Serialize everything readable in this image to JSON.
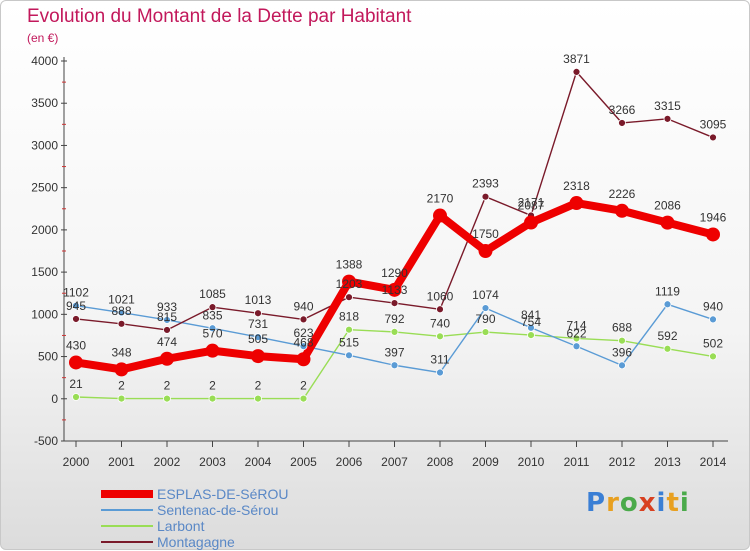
{
  "title": "Evolution du Montant de la Dette par Habitant",
  "subtitle": "(en €)",
  "logo": "Proxiti",
  "chart_data": {
    "type": "line",
    "categories": [
      "2000",
      "2001",
      "2002",
      "2003",
      "2004",
      "2005",
      "2006",
      "2007",
      "2008",
      "2009",
      "2010",
      "2011",
      "2012",
      "2013",
      "2014"
    ],
    "y_ticks": [
      "-500",
      "0",
      "500",
      "1000",
      "1500",
      "2000",
      "2500",
      "3000",
      "3500",
      "4000"
    ],
    "ylim": [
      -500,
      4000
    ],
    "grid": false,
    "legend_position": "bottom-left",
    "series": [
      {
        "name": "ESPLAS-DE-SéROU",
        "color": "#ee0000",
        "values": [
          430,
          348,
          474,
          570,
          505,
          468,
          1388,
          1290,
          2170,
          1750,
          2087,
          2318,
          2226,
          2086,
          1946
        ],
        "labels": [
          "430",
          "348",
          "474",
          "570",
          "505",
          "468",
          "1388",
          "1290",
          "2170",
          "1750",
          "2087",
          "2318",
          "2226",
          "2086",
          "1946"
        ]
      },
      {
        "name": "Sentenac-de-Sérou",
        "color": "#5a9bd5",
        "values": [
          1102,
          1021,
          933,
          835,
          731,
          623,
          515,
          397,
          311,
          1074,
          841,
          622,
          396,
          1119,
          940
        ],
        "labels": [
          "1102",
          "1021",
          "933",
          "835",
          "731",
          "623",
          "515",
          "397",
          "311",
          "1074",
          "841",
          "622",
          "396",
          "1119",
          "940"
        ]
      },
      {
        "name": "Larbont",
        "color": "#99dd55",
        "values": [
          21,
          2,
          2,
          2,
          2,
          2,
          818,
          792,
          740,
          790,
          754,
          714,
          688,
          592,
          502
        ],
        "labels": [
          "21",
          "2",
          "2",
          "2",
          "2",
          "2",
          "818",
          "792",
          "740",
          "790",
          "754",
          "714",
          "688",
          "592",
          "502"
        ]
      },
      {
        "name": "Montagagne",
        "color": "#7a1a2a",
        "values": [
          945,
          888,
          815,
          1085,
          1013,
          940,
          1203,
          1133,
          1060,
          2393,
          2171,
          3871,
          3266,
          3315,
          3095
        ],
        "labels": [
          "945",
          "888",
          "815",
          "1085",
          "1013",
          "940",
          "1203",
          "1133",
          "1060",
          "2393",
          "2171",
          "3871",
          "3266",
          "3315",
          "3095"
        ]
      }
    ]
  }
}
